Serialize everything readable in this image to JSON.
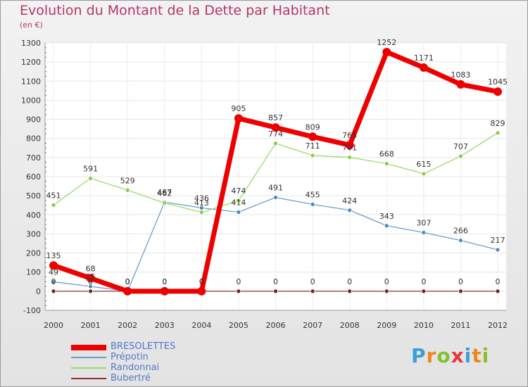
{
  "title": "Evolution du Montant de la Dette par Habitant",
  "subtitle": "(en €)",
  "logo": {
    "letters": [
      "P",
      "r",
      "o",
      "x",
      "i",
      "t",
      "i"
    ],
    "colors": [
      "#3aa0d8",
      "#f0861c",
      "#88c02b",
      "#e23a3a",
      "#3aa0d8",
      "#f0861c",
      "#88c02b"
    ]
  },
  "chart_data": {
    "type": "line",
    "categories": [
      "2000",
      "2001",
      "2002",
      "2003",
      "2004",
      "2005",
      "2006",
      "2007",
      "2008",
      "2009",
      "2010",
      "2011",
      "2012"
    ],
    "ylim": [
      -100,
      1300
    ],
    "yticks": [
      -100,
      0,
      100,
      200,
      300,
      400,
      500,
      600,
      700,
      800,
      900,
      1000,
      1100,
      1200,
      1300
    ],
    "grid": true,
    "legend_placement": "bottom-left",
    "series": [
      {
        "name": "BRESOLETTES",
        "color": "#ee0000",
        "values": [
          135,
          68,
          0,
          0,
          0,
          905,
          857,
          809,
          765,
          1252,
          1171,
          1083,
          1045
        ]
      },
      {
        "name": "Prépotin",
        "color": "#6a9ed0",
        "values": [
          49,
          25,
          0,
          467,
          436,
          414,
          491,
          455,
          424,
          343,
          307,
          266,
          217
        ]
      },
      {
        "name": "Randonnai",
        "color": "#99dd66",
        "values": [
          451,
          591,
          529,
          462,
          413,
          474,
          774,
          711,
          701,
          668,
          615,
          707,
          829
        ]
      },
      {
        "name": "Bubertré",
        "color": "#8b3030",
        "values": [
          0,
          0,
          0,
          0,
          0,
          0,
          0,
          0,
          0,
          0,
          0,
          0,
          0
        ]
      }
    ]
  }
}
